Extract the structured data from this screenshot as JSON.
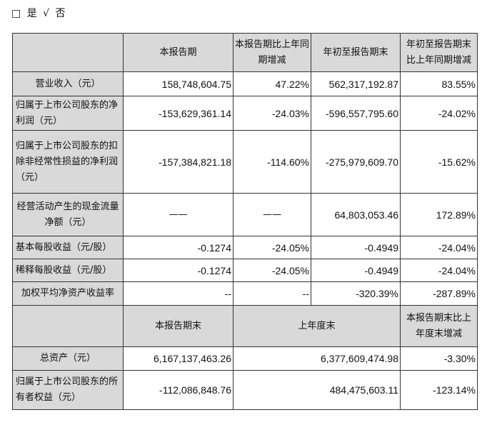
{
  "options": {
    "unchecked": "□",
    "yes": "是",
    "check": "√",
    "no": "否"
  },
  "header1": [
    "",
    "本报告期",
    "本报告期比上年同期增减",
    "年初至报告期末",
    "年初至报告期末比上年同期增减"
  ],
  "rows1": [
    {
      "label": "营业收入（元）",
      "v": [
        "158,748,604.75",
        "47.22%",
        "562,317,192.87",
        "83.55%"
      ]
    },
    {
      "label": "归属于上市公司股东的净利润（元）",
      "v": [
        "-153,629,361.14",
        "-24.03%",
        "-596,557,795.60",
        "-24.02%"
      ]
    },
    {
      "label": "归属于上市公司股东的扣除非经常性损益的净利润（元）",
      "v": [
        "-157,384,821.18",
        "-114.60%",
        "-275,979,609.70",
        "-15.62%"
      ]
    },
    {
      "label": "经营活动产生的现金流量净额（元）",
      "v": [
        "——",
        "——",
        "64,803,053.46",
        "172.89%"
      ]
    },
    {
      "label": "基本每股收益（元/股）",
      "v": [
        "-0.1274",
        "-24.05%",
        "-0.4949",
        "-24.04%"
      ]
    },
    {
      "label": "稀释每股收益（元/股）",
      "v": [
        "-0.1274",
        "-24.05%",
        "-0.4949",
        "-24.04%"
      ]
    },
    {
      "label": "加权平均净资产收益率",
      "v": [
        "--",
        "--",
        "-320.39%",
        "-287.89%"
      ]
    }
  ],
  "header2": [
    "",
    "本报告期末",
    "上年度末",
    "本报告期末比上年度末增减"
  ],
  "rows2": [
    {
      "label": "总资产（元）",
      "v": [
        "6,167,137,463.26",
        "6,377,609,474.98",
        "-3.30%"
      ]
    },
    {
      "label": "归属于上市公司股东的所有者权益（元）",
      "v": [
        "-112,086,848.76",
        "484,475,603.11",
        "-123.14%"
      ]
    }
  ]
}
